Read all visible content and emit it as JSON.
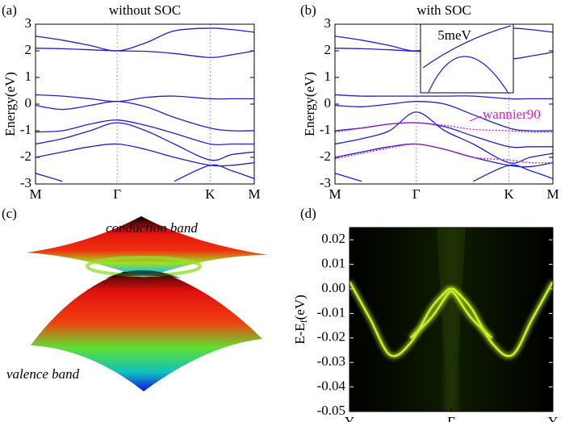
{
  "chart_data": [
    {
      "type": "line",
      "panel": "(a)",
      "title": "without SOC",
      "ylabel": "Energy(eV)",
      "x": [
        0,
        0.33,
        0.67,
        1,
        1.35,
        1.7,
        2.14,
        2.4,
        2.68
      ],
      "xlim": [
        0,
        2.68
      ],
      "xticks": [
        {
          "value": 0,
          "label": "M"
        },
        {
          "value": 1,
          "label": "Γ"
        },
        {
          "value": 2.14,
          "label": "K"
        },
        {
          "value": 2.68,
          "label": "M"
        }
      ],
      "ylim": [
        -3,
        3
      ],
      "yticks": [
        -3,
        -2,
        -1,
        0,
        1,
        2,
        3
      ],
      "vgrid": true,
      "series": [
        {
          "color": "#1f1fd0",
          "values": [
            2.55,
            2.4,
            2.2,
            2.0,
            2.3,
            2.75,
            2.85,
            2.8,
            2.7
          ]
        },
        {
          "color": "#1f1fd0",
          "values": [
            2.1,
            2.08,
            2.04,
            2.0,
            1.98,
            1.9,
            1.75,
            1.85,
            2.0
          ]
        },
        {
          "color": "#1f1fd0",
          "values": [
            0.35,
            0.3,
            0.2,
            0.1,
            0.25,
            0.3,
            0.2,
            0.2,
            0.2
          ]
        },
        {
          "color": "#1f1fd0",
          "values": [
            -0.05,
            -0.2,
            -0.05,
            0.1,
            -0.1,
            -0.5,
            -0.9,
            -1.0,
            -1.0
          ]
        },
        {
          "color": "#1f1fd0",
          "values": [
            -1.05,
            -1.0,
            -0.75,
            -0.6,
            -0.8,
            -1.1,
            -1.5,
            -1.5,
            -1.5
          ]
        },
        {
          "color": "#1f1fd0",
          "values": [
            -1.5,
            -1.3,
            -1.0,
            -0.7,
            -1.0,
            -1.5,
            -2.1,
            -1.9,
            -1.8
          ]
        },
        {
          "color": "#1f1fd0",
          "values": [
            -2.0,
            -1.8,
            -1.6,
            -1.5,
            -1.7,
            -2.0,
            -2.3,
            -2.3,
            -2.2
          ]
        },
        {
          "color": "#1f1fd0",
          "values": [
            -2.6,
            -2.9,
            null,
            null,
            null,
            -2.9,
            -2.3,
            -2.5,
            -2.8
          ]
        }
      ]
    },
    {
      "type": "line",
      "panel": "(b)",
      "title": "with SOC",
      "ylabel": "Energy(eV)",
      "inset_label": "5meV",
      "annotation": "wannier90",
      "x": [
        0,
        0.33,
        0.67,
        1,
        1.35,
        1.7,
        2.14,
        2.4,
        2.68
      ],
      "xlim": [
        0,
        2.68
      ],
      "xticks": [
        {
          "value": 0,
          "label": "M"
        },
        {
          "value": 1,
          "label": "Γ"
        },
        {
          "value": 2.14,
          "label": "K"
        },
        {
          "value": 2.68,
          "label": "M"
        }
      ],
      "ylim": [
        -3,
        3
      ],
      "yticks": [
        -3,
        -2,
        -1,
        0,
        1,
        2,
        3
      ],
      "vgrid": true,
      "series": [
        {
          "color": "#1f1fd0",
          "values": [
            2.55,
            2.4,
            2.2,
            2.0,
            2.3,
            2.75,
            2.85,
            2.8,
            2.7
          ]
        },
        {
          "color": "#1f1fd0",
          "values": [
            2.1,
            2.08,
            2.04,
            1.98,
            1.95,
            1.85,
            1.7,
            1.8,
            1.95
          ]
        },
        {
          "color": "#1f1fd0",
          "values": [
            0.35,
            0.3,
            0.3,
            0.3,
            0.3,
            0.3,
            0.2,
            0.2,
            0.2
          ]
        },
        {
          "color": "#1f1fd0",
          "values": [
            -0.05,
            -0.1,
            0.0,
            0.1,
            0.0,
            -0.4,
            -0.9,
            -1.0,
            -1.0
          ]
        },
        {
          "color": "#1f1fd0",
          "values": [
            -1.0,
            -0.9,
            -0.75,
            -0.7,
            -0.85,
            -1.2,
            -1.6,
            -1.6,
            -1.6
          ]
        },
        {
          "color": "#1f1fd0",
          "values": [
            -1.5,
            -1.3,
            -1.0,
            -0.3,
            -1.0,
            -1.5,
            -2.2,
            -2.0,
            -1.85
          ]
        },
        {
          "color": "#1f1fd0",
          "values": [
            -2.0,
            -1.8,
            -1.6,
            -1.5,
            -1.7,
            -2.0,
            -2.3,
            -2.35,
            -2.2
          ]
        },
        {
          "color": "#1f1fd0",
          "values": [
            -2.6,
            -2.9,
            null,
            null,
            null,
            -2.9,
            -2.3,
            -2.5,
            -2.8
          ]
        },
        {
          "color": "#d020d0",
          "dash": true,
          "values": [
            -1.05,
            -0.9,
            -0.75,
            -0.7,
            -0.8,
            -0.95,
            -1.0,
            -1.05,
            -1.05
          ]
        },
        {
          "color": "#d020d0",
          "dash": true,
          "values": [
            -2.05,
            -1.85,
            -1.65,
            -1.5,
            -1.7,
            -2.0,
            -2.1,
            -2.2,
            -2.2
          ]
        }
      ]
    },
    {
      "type": "surface",
      "panel": "(c)",
      "annotations": [
        "conduction band",
        "valence band"
      ]
    },
    {
      "type": "heatmap",
      "panel": "(d)",
      "ylabel": {
        "main": "E-E",
        "sub": "f",
        "unit": "(eV)"
      },
      "x": [
        -1,
        -0.8,
        -0.6,
        -0.4,
        -0.2,
        -0.05,
        0,
        0.05,
        0.2,
        0.4,
        0.6,
        0.8,
        1
      ],
      "xlim": [
        -1,
        1
      ],
      "xticks": [
        {
          "value": -1,
          "label": "Y"
        },
        {
          "value": 0,
          "label": "Γ"
        },
        {
          "value": 1,
          "label": "Y"
        }
      ],
      "ylim": [
        -0.05,
        0.025
      ],
      "yticks": [
        -0.05,
        -0.04,
        -0.03,
        -0.02,
        -0.01,
        {
          "value": 0,
          "label": "0.00"
        },
        0.01,
        0.02
      ],
      "series": [
        {
          "color": "#c8f028",
          "values": [
            0.003,
            -0.012,
            -0.027,
            -0.022,
            -0.008,
            -0.001,
            0,
            -0.001,
            -0.008,
            -0.022,
            -0.027,
            -0.012,
            0.003
          ]
        },
        {
          "color": "#c8f028",
          "values": [
            null,
            null,
            null,
            -0.02,
            -0.012,
            -0.003,
            -0.001,
            -0.003,
            -0.012,
            -0.02,
            null,
            null,
            null
          ]
        }
      ]
    }
  ]
}
